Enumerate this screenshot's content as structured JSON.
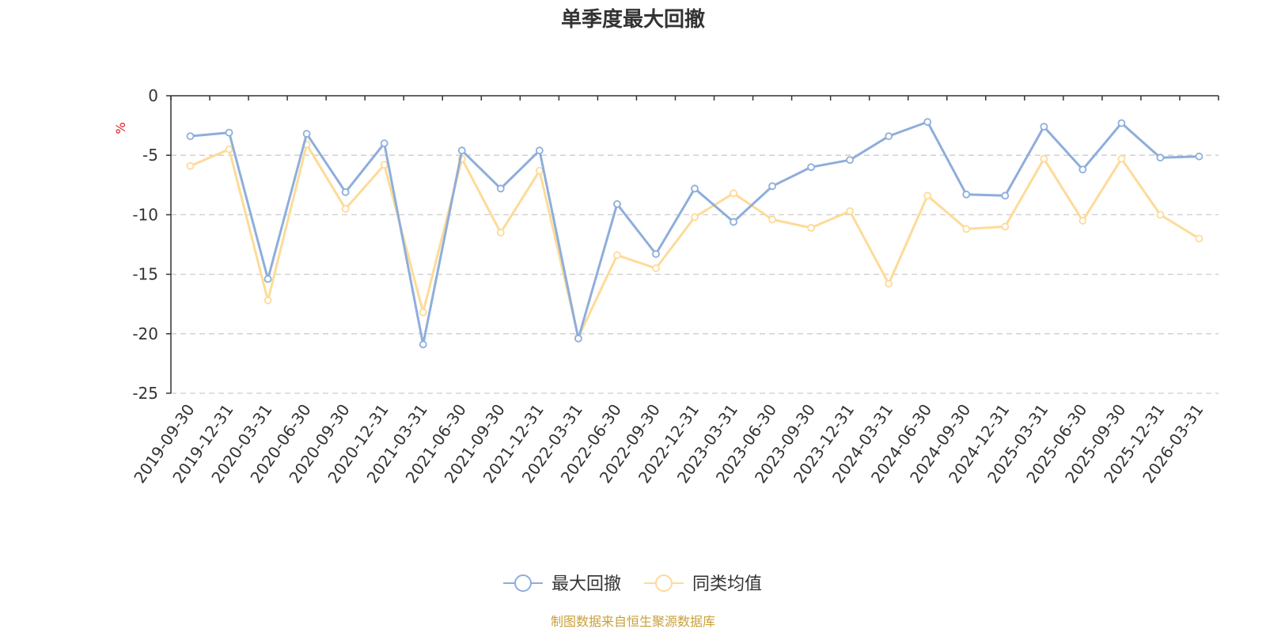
{
  "chart_data": {
    "type": "line",
    "title": "单季度最大回撤",
    "ylabel": "%",
    "ylim": [
      -25,
      0
    ],
    "yticks": [
      0,
      -5,
      -10,
      -15,
      -20,
      -25
    ],
    "grid": true,
    "legend_position": "bottom-center",
    "categories": [
      "2019-09-30",
      "2019-12-31",
      "2020-03-31",
      "2020-06-30",
      "2020-09-30",
      "2020-12-31",
      "2021-03-31",
      "2021-06-30",
      "2021-09-30",
      "2021-12-31",
      "2022-03-31",
      "2022-06-30",
      "2022-09-30",
      "2022-12-31",
      "2023-03-31",
      "2023-06-30",
      "2023-09-30",
      "2023-12-31",
      "2024-03-31",
      "2024-06-30",
      "2024-09-30",
      "2024-12-31",
      "2025-03-31",
      "2025-06-30",
      "2025-09-30",
      "2025-12-31",
      "2026-03-31"
    ],
    "series": [
      {
        "name": "最大回撤",
        "color": "#8eaedb",
        "values": [
          -3.4,
          -3.1,
          -15.4,
          -3.2,
          -8.1,
          -4.0,
          -20.9,
          -4.6,
          -7.8,
          -4.6,
          -20.4,
          -9.1,
          -13.3,
          -7.8,
          -10.6,
          -7.6,
          -6.0,
          -5.4,
          -3.4,
          -2.2,
          -8.3,
          -8.4,
          -2.6,
          -6.2,
          -2.3,
          -5.2,
          -5.1
        ]
      },
      {
        "name": "同类均值",
        "color": "#fddb98",
        "values": [
          -5.9,
          -4.5,
          -17.2,
          -4.1,
          -9.5,
          -5.8,
          -18.2,
          -5.3,
          -11.5,
          -6.3,
          -20.3,
          -13.4,
          -14.5,
          -10.2,
          -8.2,
          -10.4,
          -11.1,
          -9.7,
          -15.8,
          -8.4,
          -11.2,
          -11.0,
          -5.3,
          -10.5,
          -5.3,
          -10.0,
          -12.0
        ]
      }
    ]
  },
  "source": {
    "text": "制图数据来自恒生聚源数据库",
    "color": "#c9a13b"
  },
  "colors": {
    "unit_label": "#e02020",
    "axis": "#333333",
    "grid": "#cccccc"
  }
}
